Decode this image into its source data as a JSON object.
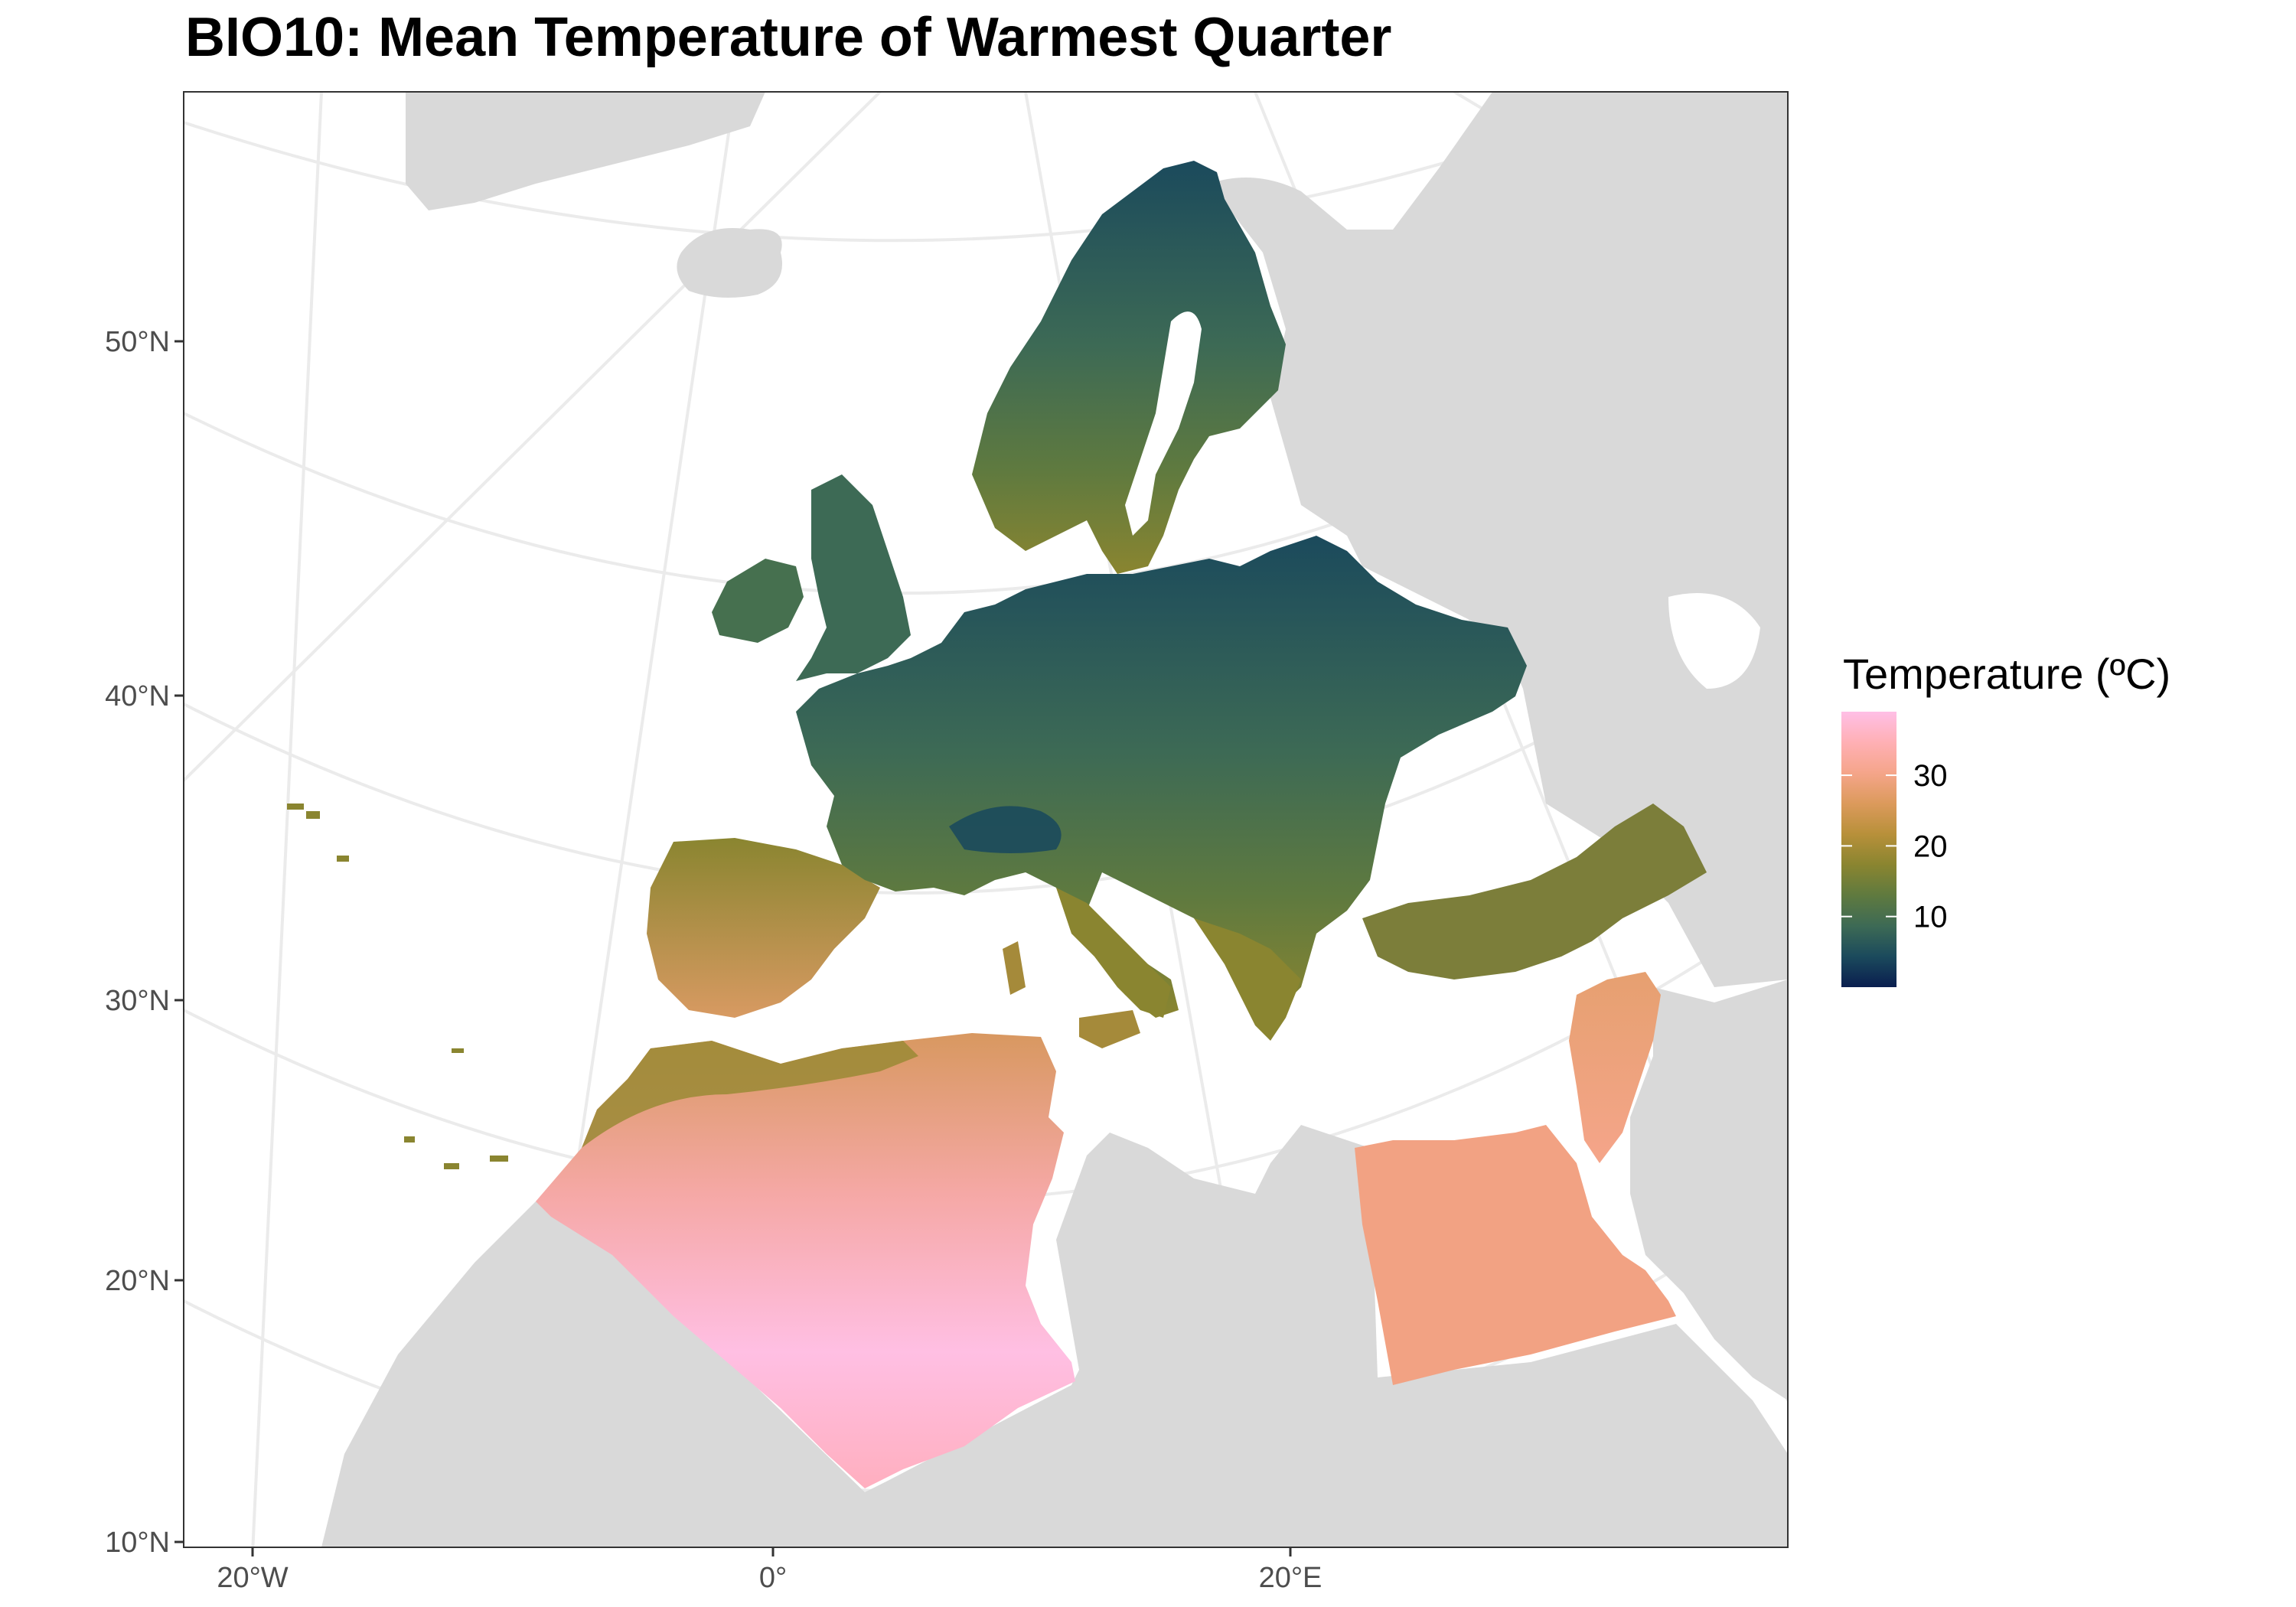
{
  "title": "BIO10: Mean Temperature of Warmest Quarter",
  "axes": {
    "y_ticks": [
      {
        "label": "50°N",
        "lat": 50
      },
      {
        "label": "40°N",
        "lat": 40
      },
      {
        "label": "30°N",
        "lat": 30
      },
      {
        "label": "20°N",
        "lat": 20
      },
      {
        "label": "10°N",
        "lat": 10
      }
    ],
    "x_ticks": [
      {
        "label": "20°W",
        "lon": -20
      },
      {
        "label": "0°",
        "lon": 0
      },
      {
        "label": "20°E",
        "lon": 20
      }
    ]
  },
  "legend": {
    "title": "Temperature (ºC)",
    "position": "right",
    "ticks": [
      {
        "label": "30",
        "value": 30
      },
      {
        "label": "20",
        "value": 20
      },
      {
        "label": "10",
        "value": 10
      }
    ],
    "range": [
      0,
      39
    ]
  },
  "colors": {
    "land_background": "#d9d9d9",
    "water": "#ffffff",
    "graticule": "#ebebeb",
    "scale": [
      "#0a1e4f",
      "#1b4a5c",
      "#3d6a55",
      "#5f7a3f",
      "#8a8530",
      "#b8903a",
      "#dc9a5c",
      "#f5a58a",
      "#ffb0b5",
      "#ffbfe6"
    ]
  }
}
